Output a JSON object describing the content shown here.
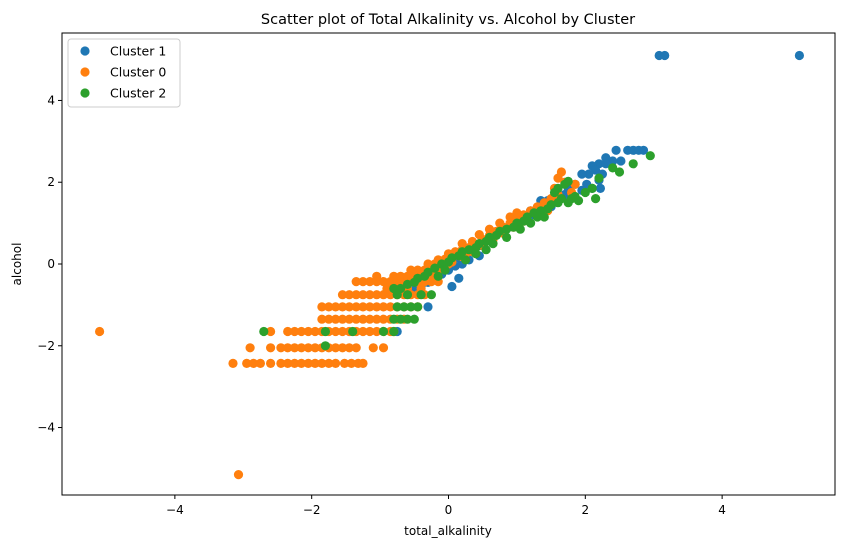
{
  "chart_data": {
    "type": "scatter",
    "title": "Scatter plot of Total Alkalinity vs. Alcohol by Cluster",
    "xlabel": "total_alkalinity",
    "ylabel": "alcohol",
    "xlim": [
      -5.65,
      5.65
    ],
    "ylim": [
      -5.65,
      5.65
    ],
    "xticks": [
      -4,
      -2,
      0,
      2,
      4
    ],
    "yticks": [
      -4,
      -2,
      0,
      2,
      4
    ],
    "xtick_labels": [
      "−4",
      "−2",
      "0",
      "2",
      "4"
    ],
    "ytick_labels": [
      "−4",
      "−2",
      "0",
      "2",
      "4"
    ],
    "grid": false,
    "legend": "upper-left",
    "series": [
      {
        "name": "Cluster 1",
        "color": "#1f77b4",
        "points": [
          [
            5.13,
            5.1
          ],
          [
            3.08,
            5.1
          ],
          [
            3.16,
            5.1
          ],
          [
            2.45,
            2.78
          ],
          [
            2.62,
            2.78
          ],
          [
            2.7,
            2.78
          ],
          [
            2.78,
            2.78
          ],
          [
            2.85,
            2.78
          ],
          [
            2.3,
            2.6
          ],
          [
            2.52,
            2.52
          ],
          [
            2.4,
            2.52
          ],
          [
            2.2,
            2.45
          ],
          [
            2.3,
            2.45
          ],
          [
            2.1,
            2.4
          ],
          [
            2.15,
            2.3
          ],
          [
            2.05,
            2.2
          ],
          [
            2.25,
            2.2
          ],
          [
            1.95,
            2.2
          ],
          [
            2.2,
            2.05
          ],
          [
            2.02,
            1.95
          ],
          [
            2.1,
            1.85
          ],
          [
            2.22,
            1.85
          ],
          [
            1.85,
            1.95
          ],
          [
            1.95,
            1.8
          ],
          [
            1.75,
            1.85
          ],
          [
            1.7,
            1.7
          ],
          [
            1.6,
            1.65
          ],
          [
            1.55,
            1.55
          ],
          [
            1.45,
            1.55
          ],
          [
            1.35,
            1.55
          ],
          [
            1.4,
            1.45
          ],
          [
            1.5,
            1.4
          ],
          [
            1.3,
            1.35
          ],
          [
            1.2,
            1.3
          ],
          [
            1.25,
            1.2
          ],
          [
            1.1,
            1.15
          ],
          [
            1.0,
            1.05
          ],
          [
            0.9,
            0.95
          ],
          [
            0.8,
            0.85
          ],
          [
            0.7,
            0.75
          ],
          [
            0.6,
            0.65
          ],
          [
            0.5,
            0.55
          ],
          [
            0.45,
            0.45
          ],
          [
            0.35,
            0.35
          ],
          [
            0.25,
            0.25
          ],
          [
            0.15,
            0.15
          ],
          [
            0.05,
            0.05
          ],
          [
            0.45,
            0.2
          ],
          [
            0.3,
            0.1
          ],
          [
            0.2,
            0.0
          ],
          [
            0.1,
            -0.05
          ],
          [
            0.0,
            -0.15
          ],
          [
            -0.1,
            -0.25
          ],
          [
            -0.2,
            -0.35
          ],
          [
            -0.3,
            -0.45
          ],
          [
            -0.4,
            -0.55
          ],
          [
            -0.5,
            -0.65
          ],
          [
            -0.3,
            -1.05
          ],
          [
            -0.75,
            -1.65
          ],
          [
            -0.7,
            -0.6
          ],
          [
            -0.55,
            -0.45
          ],
          [
            0.05,
            -0.55
          ],
          [
            0.15,
            -0.35
          ]
        ]
      },
      {
        "name": "Cluster 0",
        "color": "#ff7f0e",
        "points": [
          [
            -5.1,
            -1.65
          ],
          [
            -3.07,
            -5.15
          ],
          [
            -3.15,
            -2.43
          ],
          [
            -2.95,
            -2.43
          ],
          [
            -2.85,
            -2.43
          ],
          [
            -2.75,
            -2.43
          ],
          [
            -2.6,
            -2.43
          ],
          [
            -2.45,
            -2.43
          ],
          [
            -2.35,
            -2.43
          ],
          [
            -2.25,
            -2.43
          ],
          [
            -2.15,
            -2.43
          ],
          [
            -2.05,
            -2.43
          ],
          [
            -1.95,
            -2.43
          ],
          [
            -1.85,
            -2.43
          ],
          [
            -1.75,
            -2.43
          ],
          [
            -1.65,
            -2.43
          ],
          [
            -1.52,
            -2.43
          ],
          [
            -1.42,
            -2.43
          ],
          [
            -1.32,
            -2.43
          ],
          [
            -1.25,
            -2.43
          ],
          [
            -2.9,
            -2.05
          ],
          [
            -2.6,
            -2.05
          ],
          [
            -2.45,
            -2.05
          ],
          [
            -2.35,
            -2.05
          ],
          [
            -2.25,
            -2.05
          ],
          [
            -2.15,
            -2.05
          ],
          [
            -2.05,
            -2.05
          ],
          [
            -1.95,
            -2.05
          ],
          [
            -1.85,
            -2.05
          ],
          [
            -1.75,
            -2.05
          ],
          [
            -1.65,
            -2.05
          ],
          [
            -1.55,
            -2.05
          ],
          [
            -1.45,
            -2.05
          ],
          [
            -1.35,
            -2.05
          ],
          [
            -1.1,
            -2.05
          ],
          [
            -0.95,
            -2.05
          ],
          [
            -2.6,
            -1.65
          ],
          [
            -2.35,
            -1.65
          ],
          [
            -2.25,
            -1.65
          ],
          [
            -2.15,
            -1.65
          ],
          [
            -2.05,
            -1.65
          ],
          [
            -1.95,
            -1.65
          ],
          [
            -1.85,
            -1.65
          ],
          [
            -1.75,
            -1.65
          ],
          [
            -1.65,
            -1.65
          ],
          [
            -1.55,
            -1.65
          ],
          [
            -1.45,
            -1.65
          ],
          [
            -1.35,
            -1.65
          ],
          [
            -1.25,
            -1.65
          ],
          [
            -1.15,
            -1.65
          ],
          [
            -1.05,
            -1.65
          ],
          [
            -0.95,
            -1.65
          ],
          [
            -0.85,
            -1.65
          ],
          [
            -0.8,
            -1.65
          ],
          [
            -1.85,
            -1.35
          ],
          [
            -1.75,
            -1.35
          ],
          [
            -1.65,
            -1.35
          ],
          [
            -1.55,
            -1.35
          ],
          [
            -1.45,
            -1.35
          ],
          [
            -1.35,
            -1.35
          ],
          [
            -1.25,
            -1.35
          ],
          [
            -1.15,
            -1.35
          ],
          [
            -1.05,
            -1.35
          ],
          [
            -0.95,
            -1.35
          ],
          [
            -0.85,
            -1.35
          ],
          [
            -0.75,
            -1.35
          ],
          [
            -0.65,
            -1.35
          ],
          [
            -1.85,
            -1.05
          ],
          [
            -1.75,
            -1.05
          ],
          [
            -1.65,
            -1.05
          ],
          [
            -1.55,
            -1.05
          ],
          [
            -1.45,
            -1.05
          ],
          [
            -1.35,
            -1.05
          ],
          [
            -1.25,
            -1.05
          ],
          [
            -1.15,
            -1.05
          ],
          [
            -1.05,
            -1.05
          ],
          [
            -0.95,
            -1.05
          ],
          [
            -0.85,
            -1.05
          ],
          [
            -0.75,
            -1.05
          ],
          [
            -0.65,
            -1.05
          ],
          [
            -0.55,
            -1.05
          ],
          [
            -0.45,
            -1.05
          ],
          [
            -1.55,
            -0.75
          ],
          [
            -1.45,
            -0.75
          ],
          [
            -1.35,
            -0.75
          ],
          [
            -1.25,
            -0.75
          ],
          [
            -1.15,
            -0.75
          ],
          [
            -1.05,
            -0.75
          ],
          [
            -0.95,
            -0.75
          ],
          [
            -0.85,
            -0.75
          ],
          [
            -0.75,
            -0.75
          ],
          [
            -0.65,
            -0.75
          ],
          [
            -0.55,
            -0.75
          ],
          [
            -0.45,
            -0.75
          ],
          [
            -0.35,
            -0.75
          ],
          [
            -1.35,
            -0.43
          ],
          [
            -1.25,
            -0.43
          ],
          [
            -1.15,
            -0.43
          ],
          [
            -1.05,
            -0.43
          ],
          [
            -0.95,
            -0.43
          ],
          [
            -0.85,
            -0.43
          ],
          [
            -0.75,
            -0.43
          ],
          [
            -0.65,
            -0.43
          ],
          [
            -0.55,
            -0.43
          ],
          [
            -0.45,
            -0.43
          ],
          [
            -0.35,
            -0.43
          ],
          [
            -0.25,
            -0.43
          ],
          [
            -0.15,
            -0.43
          ],
          [
            -1.05,
            -0.3
          ],
          [
            -0.8,
            -0.3
          ],
          [
            -0.7,
            -0.3
          ],
          [
            -0.6,
            -0.3
          ],
          [
            -0.5,
            -0.3
          ],
          [
            -0.4,
            -0.3
          ],
          [
            -0.3,
            -0.3
          ],
          [
            -0.2,
            -0.3
          ],
          [
            -0.9,
            -0.6
          ],
          [
            -0.6,
            -0.6
          ],
          [
            -0.4,
            -0.6
          ],
          [
            -0.55,
            -0.15
          ],
          [
            -0.45,
            -0.15
          ],
          [
            -0.35,
            -0.15
          ],
          [
            -0.25,
            -0.15
          ],
          [
            -0.15,
            -0.15
          ],
          [
            -0.3,
            0.0
          ],
          [
            -0.2,
            0.0
          ],
          [
            -0.1,
            0.0
          ],
          [
            0.0,
            0.0
          ],
          [
            -0.15,
            0.1
          ],
          [
            -0.05,
            0.12
          ],
          [
            0.05,
            0.15
          ],
          [
            0.15,
            0.2
          ],
          [
            0.25,
            0.25
          ],
          [
            0.0,
            0.25
          ],
          [
            0.1,
            0.3
          ],
          [
            0.2,
            0.35
          ],
          [
            0.3,
            0.4
          ],
          [
            0.4,
            0.45
          ],
          [
            0.2,
            0.5
          ],
          [
            0.35,
            0.55
          ],
          [
            0.5,
            0.6
          ],
          [
            0.6,
            0.7
          ],
          [
            0.45,
            0.72
          ],
          [
            0.7,
            0.8
          ],
          [
            0.6,
            0.85
          ],
          [
            0.8,
            0.9
          ],
          [
            0.9,
            1.0
          ],
          [
            0.75,
            1.0
          ],
          [
            1.0,
            1.1
          ],
          [
            0.9,
            1.15
          ],
          [
            1.1,
            1.2
          ],
          [
            1.0,
            1.25
          ],
          [
            1.2,
            1.3
          ],
          [
            1.3,
            1.4
          ],
          [
            1.4,
            1.5
          ],
          [
            1.5,
            1.6
          ],
          [
            1.6,
            1.7
          ],
          [
            1.55,
            1.85
          ],
          [
            1.7,
            2.0
          ],
          [
            1.6,
            2.1
          ],
          [
            1.65,
            2.25
          ],
          [
            1.85,
            1.95
          ],
          [
            1.8,
            1.75
          ],
          [
            1.45,
            1.3
          ],
          [
            1.3,
            1.2
          ],
          [
            1.1,
            1.05
          ],
          [
            0.95,
            0.9
          ],
          [
            0.8,
            0.75
          ],
          [
            0.65,
            0.6
          ],
          [
            0.5,
            0.45
          ],
          [
            0.35,
            0.3
          ],
          [
            0.2,
            0.18
          ],
          [
            0.05,
            0.05
          ]
        ]
      },
      {
        "name": "Cluster 2",
        "color": "#2ca02c",
        "points": [
          [
            2.95,
            2.65
          ],
          [
            2.7,
            2.45
          ],
          [
            2.5,
            2.25
          ],
          [
            2.4,
            2.35
          ],
          [
            2.2,
            2.1
          ],
          [
            2.1,
            1.85
          ],
          [
            2.0,
            1.75
          ],
          [
            2.15,
            1.6
          ],
          [
            1.85,
            1.65
          ],
          [
            1.75,
            2.02
          ],
          [
            1.7,
            1.95
          ],
          [
            1.6,
            1.85
          ],
          [
            1.55,
            1.75
          ],
          [
            1.65,
            1.6
          ],
          [
            1.8,
            1.6
          ],
          [
            1.9,
            1.55
          ],
          [
            1.75,
            1.5
          ],
          [
            1.6,
            1.5
          ],
          [
            1.5,
            1.45
          ],
          [
            1.45,
            1.35
          ],
          [
            1.35,
            1.3
          ],
          [
            1.25,
            1.25
          ],
          [
            1.3,
            1.15
          ],
          [
            1.15,
            1.15
          ],
          [
            1.1,
            1.05
          ],
          [
            1.0,
            1.0
          ],
          [
            0.95,
            0.9
          ],
          [
            0.85,
            0.85
          ],
          [
            0.75,
            0.8
          ],
          [
            0.7,
            0.7
          ],
          [
            0.6,
            0.65
          ],
          [
            0.55,
            0.55
          ],
          [
            0.45,
            0.5
          ],
          [
            0.4,
            0.4
          ],
          [
            0.3,
            0.35
          ],
          [
            0.2,
            0.3
          ],
          [
            0.15,
            0.2
          ],
          [
            0.05,
            0.15
          ],
          [
            0.0,
            0.05
          ],
          [
            -0.1,
            0.0
          ],
          [
            -0.2,
            -0.1
          ],
          [
            -0.3,
            -0.2
          ],
          [
            -0.35,
            -0.3
          ],
          [
            -0.45,
            -0.35
          ],
          [
            -0.5,
            -0.45
          ],
          [
            -0.6,
            -0.5
          ],
          [
            -0.7,
            -0.6
          ],
          [
            -0.8,
            -0.6
          ],
          [
            -0.6,
            -0.75
          ],
          [
            -0.4,
            -0.75
          ],
          [
            -0.25,
            -0.75
          ],
          [
            -0.75,
            -0.75
          ],
          [
            -0.75,
            -1.05
          ],
          [
            -0.65,
            -1.05
          ],
          [
            -0.55,
            -1.05
          ],
          [
            -0.45,
            -1.05
          ],
          [
            -0.8,
            -1.35
          ],
          [
            -0.7,
            -1.35
          ],
          [
            -0.6,
            -1.35
          ],
          [
            -0.5,
            -1.35
          ],
          [
            -0.8,
            -1.65
          ],
          [
            -0.95,
            -1.65
          ],
          [
            -1.4,
            -1.65
          ],
          [
            -1.8,
            -1.65
          ],
          [
            -2.7,
            -1.65
          ],
          [
            -1.8,
            -2.0
          ],
          [
            0.25,
            0.1
          ],
          [
            0.4,
            0.25
          ],
          [
            0.55,
            0.35
          ],
          [
            0.65,
            0.5
          ],
          [
            0.85,
            0.65
          ],
          [
            1.05,
            0.85
          ],
          [
            1.2,
            1.0
          ],
          [
            1.4,
            1.15
          ],
          [
            -0.15,
            -0.3
          ],
          [
            -0.05,
            -0.15
          ]
        ]
      }
    ]
  }
}
